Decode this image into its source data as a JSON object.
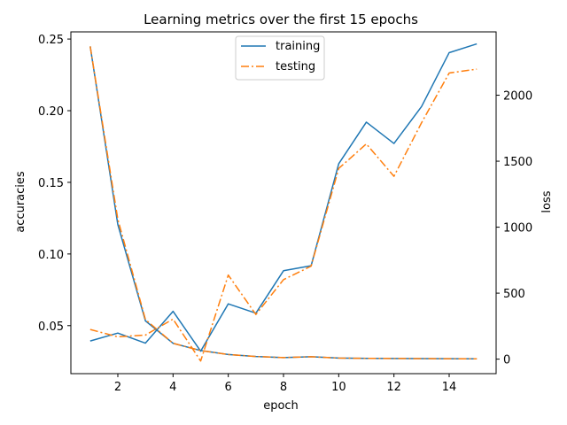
{
  "chart_data": {
    "type": "line",
    "title": "Learning metrics over the first 15 epochs",
    "xlabel": "epoch",
    "ylabel_left": "accuracies",
    "ylabel_right": "loss",
    "xlim": [
      0.3,
      15.7
    ],
    "ylim_left": [
      0.0165,
      0.255
    ],
    "ylim_right": [
      -110,
      2480
    ],
    "x_ticks": [
      2,
      4,
      6,
      8,
      10,
      12,
      14
    ],
    "y_left_ticks": [
      0.05,
      0.1,
      0.15,
      0.2,
      0.25
    ],
    "y_left_tick_labels": [
      "0.05",
      "0.10",
      "0.15",
      "0.20",
      "0.25"
    ],
    "y_right_ticks": [
      0,
      500,
      1000,
      1500,
      2000
    ],
    "y_right_tick_labels": [
      "0",
      "500",
      "1000",
      "1500",
      "2000"
    ],
    "legend_position": "top-center",
    "grid": false,
    "x": [
      1,
      2,
      3,
      4,
      5,
      6,
      7,
      8,
      9,
      10,
      11,
      12,
      13,
      14,
      15
    ],
    "series": [
      {
        "name": "training",
        "axis": "left",
        "style": "solid",
        "color": "#1f77b4",
        "values": [
          0.0393,
          0.0448,
          0.0378,
          0.06,
          0.0322,
          0.0652,
          0.0587,
          0.0883,
          0.0918,
          0.163,
          0.192,
          0.1771,
          0.2029,
          0.2405,
          0.2466
        ]
      },
      {
        "name": "testing",
        "axis": "left",
        "style": "dashdot",
        "color": "#ff7f0e",
        "values": [
          0.0473,
          0.0422,
          0.0434,
          0.0546,
          0.0253,
          0.0853,
          0.0578,
          0.0821,
          0.0915,
          0.1597,
          0.1768,
          0.1542,
          0.1916,
          0.2263,
          0.229
        ]
      },
      {
        "name": "training",
        "axis": "right",
        "style": "solid",
        "color": "#1f77b4",
        "values": [
          2370,
          1020,
          290,
          120,
          65,
          35,
          20,
          12,
          18,
          8,
          6,
          5,
          4,
          3,
          2
        ]
      },
      {
        "name": "testing",
        "axis": "right",
        "style": "dashdot",
        "color": "#ff7f0e",
        "values": [
          2370,
          1060,
          300,
          120,
          65,
          35,
          20,
          12,
          18,
          8,
          6,
          5,
          4,
          3,
          2
        ]
      }
    ]
  }
}
